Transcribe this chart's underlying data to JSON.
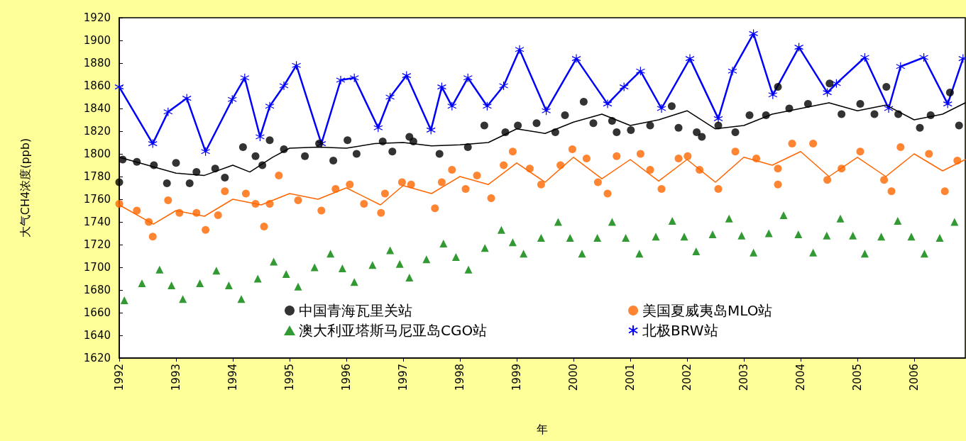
{
  "chart_data": {
    "type": "scatter",
    "xlabel": "年",
    "ylabel": "大气CH4浓度(ppb)",
    "xlim": [
      1992,
      2006.9
    ],
    "xticks": [
      1992,
      1993,
      1994,
      1995,
      1996,
      1997,
      1998,
      1999,
      2000,
      2001,
      2002,
      2003,
      2004,
      2005,
      2006
    ],
    "ylim": [
      1620,
      1920
    ],
    "yticks": [
      1620,
      1640,
      1660,
      1680,
      1700,
      1720,
      1740,
      1760,
      1780,
      1800,
      1820,
      1840,
      1860,
      1880,
      1900,
      1920
    ],
    "grid": false,
    "legend": "bottom",
    "series": [
      {
        "name": "中国青海瓦里关站",
        "marker": "circle",
        "color": "#000000",
        "x": [
          1992.0,
          1992.06,
          1992.31,
          1992.61,
          1992.84,
          1993.0,
          1993.24,
          1993.36,
          1993.69,
          1993.86,
          1994.18,
          1994.4,
          1994.52,
          1994.65,
          1994.9,
          1995.27,
          1995.52,
          1995.77,
          1996.02,
          1996.18,
          1996.64,
          1996.81,
          1997.11,
          1997.18,
          1997.64,
          1998.14,
          1998.43,
          1998.8,
          1999.02,
          1999.35,
          1999.68,
          1999.85,
          2000.18,
          2000.35,
          2000.68,
          2000.76,
          2001.01,
          2001.35,
          2001.73,
          2001.85,
          2002.17,
          2002.26,
          2002.55,
          2002.85,
          2003.1,
          2003.39,
          2003.6,
          2003.8,
          2004.13,
          2004.51,
          2004.72,
          2005.05,
          2005.3,
          2005.51,
          2005.72,
          2006.1,
          2006.29,
          2006.63,
          2006.79
        ],
        "values": [
          1775,
          1795,
          1793,
          1790,
          1774,
          1792,
          1774,
          1784,
          1787,
          1779,
          1806,
          1798,
          1790,
          1812,
          1804,
          1798,
          1809,
          1794,
          1812,
          1800,
          1811,
          1802,
          1815,
          1811,
          1800,
          1806,
          1825,
          1819,
          1825,
          1827,
          1819,
          1834,
          1846,
          1827,
          1829,
          1819,
          1821,
          1825,
          1842,
          1823,
          1819,
          1815,
          1825,
          1819,
          1834,
          1834,
          1859,
          1840,
          1844,
          1862,
          1835,
          1844,
          1835,
          1859,
          1835,
          1823,
          1834,
          1854,
          1825
        ]
      },
      {
        "name": "美国夏威夷岛MLO站",
        "marker": "circle",
        "color": "#ff6600",
        "x": [
          1992.0,
          1992.31,
          1992.52,
          1992.59,
          1992.86,
          1993.06,
          1993.36,
          1993.52,
          1993.74,
          1993.86,
          1994.23,
          1994.4,
          1994.55,
          1994.65,
          1994.81,
          1995.15,
          1995.56,
          1995.81,
          1996.06,
          1996.31,
          1996.61,
          1996.68,
          1996.98,
          1997.14,
          1997.56,
          1997.68,
          1997.86,
          1998.1,
          1998.3,
          1998.55,
          1998.77,
          1998.93,
          1999.23,
          1999.43,
          1999.77,
          1999.98,
          2000.23,
          2000.43,
          2000.6,
          2000.76,
          2001.18,
          2001.35,
          2001.55,
          2001.85,
          2002.01,
          2002.22,
          2002.55,
          2002.85,
          2003.22,
          2003.6,
          2003.6,
          2003.85,
          2004.22,
          2004.47,
          2004.72,
          2005.05,
          2005.47,
          2005.6,
          2005.76,
          2006.26,
          2006.54,
          2006.76
        ],
        "values": [
          1756,
          1750,
          1740,
          1727,
          1759,
          1748,
          1748,
          1733,
          1746,
          1767,
          1765,
          1756,
          1736,
          1756,
          1781,
          1759,
          1750,
          1769,
          1773,
          1756,
          1748,
          1765,
          1775,
          1773,
          1752,
          1775,
          1786,
          1769,
          1781,
          1761,
          1790,
          1802,
          1787,
          1773,
          1790,
          1804,
          1796,
          1775,
          1765,
          1798,
          1800,
          1786,
          1769,
          1796,
          1798,
          1786,
          1769,
          1802,
          1796,
          1787,
          1773,
          1809,
          1809,
          1777,
          1787,
          1802,
          1777,
          1767,
          1806,
          1800,
          1767,
          1794
        ]
      },
      {
        "name": "澳大利亚塔斯马尼亚岛CGO站",
        "marker": "triangle",
        "color": "#008000",
        "x": [
          1992.09,
          1992.4,
          1992.71,
          1992.92,
          1993.12,
          1993.42,
          1993.71,
          1993.93,
          1994.15,
          1994.44,
          1994.72,
          1994.94,
          1995.15,
          1995.44,
          1995.72,
          1995.93,
          1996.14,
          1996.46,
          1996.77,
          1996.94,
          1997.11,
          1997.41,
          1997.71,
          1997.93,
          1998.15,
          1998.44,
          1998.73,
          1998.93,
          1999.12,
          1999.43,
          1999.73,
          1999.94,
          2000.15,
          2000.42,
          2000.68,
          2000.92,
          2001.16,
          2001.45,
          2001.74,
          2001.95,
          2002.16,
          2002.45,
          2002.74,
          2002.96,
          2003.17,
          2003.44,
          2003.7,
          2003.96,
          2004.22,
          2004.46,
          2004.7,
          2004.92,
          2005.13,
          2005.42,
          2005.71,
          2005.95,
          2006.18,
          2006.45,
          2006.71
        ],
        "values": [
          1671,
          1686,
          1698,
          1684,
          1672,
          1686,
          1697,
          1684,
          1672,
          1690,
          1705,
          1694,
          1683,
          1700,
          1712,
          1699,
          1687,
          1702,
          1715,
          1703,
          1691,
          1707,
          1721,
          1709,
          1698,
          1717,
          1733,
          1722,
          1712,
          1726,
          1740,
          1726,
          1712,
          1726,
          1740,
          1726,
          1712,
          1727,
          1741,
          1727,
          1714,
          1729,
          1743,
          1728,
          1713,
          1730,
          1746,
          1729,
          1713,
          1728,
          1743,
          1728,
          1712,
          1727,
          1741,
          1727,
          1712,
          1726,
          1740
        ]
      },
      {
        "name": "北极BRW站",
        "type": "line",
        "marker": "cross",
        "color": "#0000ff",
        "x": [
          1992.0,
          1992.59,
          1992.86,
          1993.19,
          1993.52,
          1993.99,
          1994.21,
          1994.48,
          1994.65,
          1994.9,
          1995.12,
          1995.56,
          1995.9,
          1996.14,
          1996.56,
          1996.77,
          1997.06,
          1997.49,
          1997.68,
          1997.86,
          1998.14,
          1998.48,
          1998.77,
          1999.05,
          1999.52,
          2000.05,
          2000.6,
          2000.89,
          2001.18,
          2001.55,
          2002.05,
          2002.55,
          2002.8,
          2003.17,
          2003.51,
          2003.97,
          2004.47,
          2004.63,
          2005.13,
          2005.55,
          2005.76,
          2006.17,
          2006.59,
          2006.86
        ],
        "values": [
          1859,
          1809,
          1837,
          1849,
          1802,
          1848,
          1867,
          1815,
          1842,
          1860,
          1878,
          1809,
          1865,
          1867,
          1823,
          1850,
          1869,
          1821,
          1859,
          1842,
          1867,
          1842,
          1860,
          1892,
          1838,
          1884,
          1844,
          1859,
          1873,
          1840,
          1884,
          1831,
          1873,
          1906,
          1852,
          1894,
          1854,
          1862,
          1885,
          1840,
          1877,
          1885,
          1844,
          1884
        ]
      },
      {
        "type": "line",
        "marker": "none",
        "color": "#000000",
        "x": [
          1992.0,
          1992.5,
          1993.0,
          1993.5,
          1994.0,
          1994.3,
          1994.7,
          1995.0,
          1995.5,
          1996.0,
          1996.5,
          1997.0,
          1997.5,
          1998.0,
          1998.5,
          1999.0,
          1999.5,
          2000.0,
          2000.5,
          2001.0,
          2001.5,
          2002.0,
          2002.5,
          2003.0,
          2003.5,
          2004.0,
          2004.5,
          2005.0,
          2005.5,
          2006.0,
          2006.5,
          2006.9
        ],
        "values": [
          1797,
          1790,
          1783,
          1781,
          1790,
          1784,
          1797,
          1805,
          1806,
          1805,
          1809,
          1810,
          1807,
          1808,
          1810,
          1822,
          1818,
          1828,
          1835,
          1825,
          1830,
          1838,
          1822,
          1825,
          1835,
          1840,
          1845,
          1838,
          1843,
          1830,
          1835,
          1845
        ]
      },
      {
        "type": "line",
        "marker": "none",
        "color": "#ff6600",
        "x": [
          1992.0,
          1992.6,
          1993.0,
          1993.5,
          1994.0,
          1994.5,
          1995.0,
          1995.5,
          1996.0,
          1996.6,
          1997.0,
          1997.5,
          1998.0,
          1998.5,
          1999.0,
          1999.5,
          2000.0,
          2000.5,
          2001.0,
          2001.5,
          2002.0,
          2002.5,
          2003.0,
          2003.5,
          2004.0,
          2004.5,
          2005.0,
          2005.5,
          2006.0,
          2006.5,
          2006.9
        ],
        "values": [
          1755,
          1738,
          1750,
          1745,
          1760,
          1755,
          1765,
          1760,
          1770,
          1755,
          1772,
          1765,
          1780,
          1773,
          1792,
          1775,
          1797,
          1778,
          1795,
          1776,
          1795,
          1775,
          1797,
          1790,
          1802,
          1780,
          1797,
          1780,
          1800,
          1785,
          1795
        ]
      }
    ]
  }
}
